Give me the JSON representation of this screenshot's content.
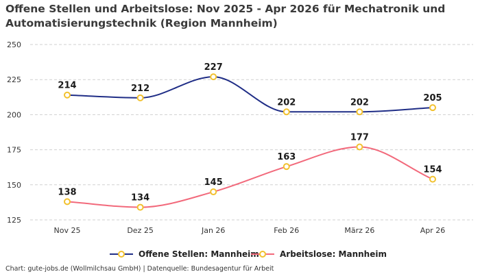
{
  "chart_data": {
    "type": "line",
    "title": "Offene Stellen und Arbeitslose: Nov 2025 - Apr 2026 für Mechatronik und Automatisierungstechnik (Region Mannheim)",
    "categories": [
      "Nov 25",
      "Dez 25",
      "Jan 26",
      "Feb 26",
      "März 26",
      "Apr 26"
    ],
    "ylim": [
      125,
      250
    ],
    "yticks": [
      125,
      150,
      175,
      200,
      225,
      250
    ],
    "grid": true,
    "legend_position": "bottom",
    "series": [
      {
        "name": "Offene Stellen: Mannheim",
        "values": [
          214,
          212,
          227,
          202,
          202,
          205
        ],
        "color": "#1f2d86"
      },
      {
        "name": "Arbeitslose: Mannheim",
        "values": [
          138,
          134,
          145,
          163,
          177,
          154
        ],
        "color": "#f2697b"
      }
    ],
    "marker_fill": "#ffffff",
    "marker_color": "#f2c12e"
  },
  "footer": "Chart: gute-jobs.de (Wollmilchsau GmbH) | Datenquelle: Bundesagentur für Arbeit"
}
